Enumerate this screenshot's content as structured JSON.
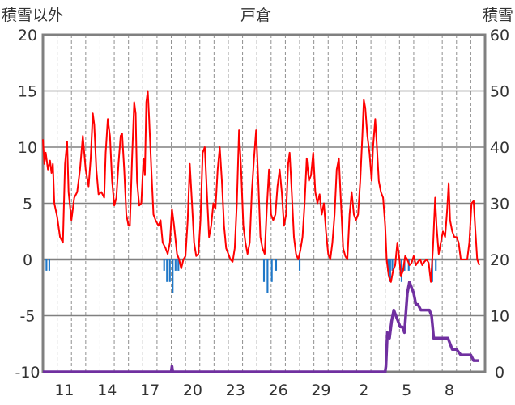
{
  "chart_data": {
    "type": "line",
    "title": "戸倉",
    "left_axis_label": "積雪以外",
    "right_axis_label": "積雪",
    "left_ylim": [
      -10,
      20
    ],
    "left_yticks": [
      20,
      15,
      10,
      5,
      0,
      -5,
      -10
    ],
    "right_ylim": [
      0,
      60
    ],
    "right_yticks": [
      60,
      50,
      40,
      30,
      20,
      10,
      0
    ],
    "x_range_days": [
      0,
      31
    ],
    "x_ticks": [
      {
        "pos": 1.5,
        "label": "11"
      },
      {
        "pos": 4.5,
        "label": "14"
      },
      {
        "pos": 7.5,
        "label": "17"
      },
      {
        "pos": 10.5,
        "label": "20"
      },
      {
        "pos": 13.5,
        "label": "23"
      },
      {
        "pos": 16.5,
        "label": "26"
      },
      {
        "pos": 19.5,
        "label": "29"
      },
      {
        "pos": 22.5,
        "label": "2"
      },
      {
        "pos": 25.5,
        "label": "5"
      },
      {
        "pos": 28.5,
        "label": "8"
      }
    ],
    "grid": "vertical dashed daily; horizontal solid at each 5",
    "colors": {
      "temperature": "#ff0000",
      "precipitation": "#1f78c8",
      "snow_depth": "#7030a0",
      "frame": "#808080",
      "zero_line": "#808080"
    },
    "series": [
      {
        "key": "temperature",
        "axis": "left",
        "values": [
          [
            0.0,
            10.7
          ],
          [
            0.1,
            8.5
          ],
          [
            0.2,
            9.5
          ],
          [
            0.35,
            8.0
          ],
          [
            0.5,
            8.8
          ],
          [
            0.6,
            7.7
          ],
          [
            0.7,
            8.5
          ],
          [
            0.8,
            5.0
          ],
          [
            1.0,
            3.8
          ],
          [
            1.2,
            2.0
          ],
          [
            1.4,
            1.5
          ],
          [
            1.55,
            8.5
          ],
          [
            1.7,
            10.5
          ],
          [
            1.8,
            6.0
          ],
          [
            2.0,
            3.5
          ],
          [
            2.2,
            5.5
          ],
          [
            2.4,
            6.0
          ],
          [
            2.6,
            8.0
          ],
          [
            2.8,
            11.0
          ],
          [
            3.0,
            8.0
          ],
          [
            3.2,
            6.5
          ],
          [
            3.35,
            9.0
          ],
          [
            3.5,
            13.0
          ],
          [
            3.6,
            12.0
          ],
          [
            3.75,
            8.0
          ],
          [
            3.9,
            5.8
          ],
          [
            4.1,
            6.0
          ],
          [
            4.3,
            5.5
          ],
          [
            4.4,
            9.5
          ],
          [
            4.55,
            12.5
          ],
          [
            4.7,
            11.0
          ],
          [
            4.85,
            7.0
          ],
          [
            5.0,
            4.8
          ],
          [
            5.15,
            5.5
          ],
          [
            5.3,
            8.5
          ],
          [
            5.45,
            11.0
          ],
          [
            5.55,
            11.2
          ],
          [
            5.7,
            8.0
          ],
          [
            5.85,
            4.0
          ],
          [
            6.0,
            3.0
          ],
          [
            6.1,
            3.0
          ],
          [
            6.25,
            9.0
          ],
          [
            6.4,
            14.0
          ],
          [
            6.5,
            13.0
          ],
          [
            6.6,
            7.0
          ],
          [
            6.75,
            4.8
          ],
          [
            6.9,
            5.0
          ],
          [
            7.05,
            9.0
          ],
          [
            7.15,
            7.5
          ],
          [
            7.25,
            14.0
          ],
          [
            7.35,
            15.0
          ],
          [
            7.45,
            12.5
          ],
          [
            7.6,
            8.0
          ],
          [
            7.75,
            4.0
          ],
          [
            7.9,
            3.5
          ],
          [
            8.1,
            3.0
          ],
          [
            8.25,
            3.5
          ],
          [
            8.4,
            1.5
          ],
          [
            8.6,
            1.0
          ],
          [
            8.75,
            0.5
          ],
          [
            8.9,
            1.5
          ],
          [
            9.05,
            4.5
          ],
          [
            9.2,
            3.0
          ],
          [
            9.4,
            0.5
          ],
          [
            9.55,
            0.0
          ],
          [
            9.7,
            -0.8
          ],
          [
            9.85,
            0.0
          ],
          [
            10.0,
            0.3
          ],
          [
            10.15,
            3.5
          ],
          [
            10.3,
            8.5
          ],
          [
            10.45,
            5.0
          ],
          [
            10.6,
            1.5
          ],
          [
            10.75,
            0.3
          ],
          [
            10.9,
            0.5
          ],
          [
            11.05,
            3.5
          ],
          [
            11.2,
            9.5
          ],
          [
            11.35,
            10.0
          ],
          [
            11.5,
            6.0
          ],
          [
            11.65,
            2.0
          ],
          [
            11.8,
            3.0
          ],
          [
            11.95,
            5.0
          ],
          [
            12.1,
            4.5
          ],
          [
            12.25,
            8.0
          ],
          [
            12.4,
            10.0
          ],
          [
            12.55,
            7.0
          ],
          [
            12.7,
            3.0
          ],
          [
            12.85,
            1.0
          ],
          [
            13.0,
            0.5
          ],
          [
            13.15,
            0.0
          ],
          [
            13.3,
            -0.2
          ],
          [
            13.45,
            1.0
          ],
          [
            13.6,
            5.0
          ],
          [
            13.75,
            11.5
          ],
          [
            13.9,
            8.0
          ],
          [
            14.05,
            3.0
          ],
          [
            14.2,
            1.5
          ],
          [
            14.35,
            0.5
          ],
          [
            14.5,
            1.5
          ],
          [
            14.65,
            6.0
          ],
          [
            14.8,
            9.0
          ],
          [
            14.95,
            11.5
          ],
          [
            15.1,
            7.0
          ],
          [
            15.25,
            2.0
          ],
          [
            15.4,
            1.0
          ],
          [
            15.55,
            0.5
          ],
          [
            15.7,
            4.5
          ],
          [
            15.85,
            8.0
          ],
          [
            16.0,
            4.0
          ],
          [
            16.15,
            3.5
          ],
          [
            16.3,
            4.0
          ],
          [
            16.45,
            6.5
          ],
          [
            16.6,
            8.0
          ],
          [
            16.75,
            6.0
          ],
          [
            16.9,
            3.0
          ],
          [
            17.05,
            4.0
          ],
          [
            17.2,
            8.5
          ],
          [
            17.3,
            9.5
          ],
          [
            17.45,
            6.0
          ],
          [
            17.6,
            2.0
          ],
          [
            17.75,
            0.5
          ],
          [
            17.9,
            0.0
          ],
          [
            18.05,
            0.8
          ],
          [
            18.2,
            2.0
          ],
          [
            18.35,
            5.0
          ],
          [
            18.5,
            9.0
          ],
          [
            18.65,
            7.0
          ],
          [
            18.8,
            7.5
          ],
          [
            18.95,
            9.5
          ],
          [
            19.1,
            6.0
          ],
          [
            19.25,
            5.0
          ],
          [
            19.4,
            5.8
          ],
          [
            19.55,
            4.0
          ],
          [
            19.7,
            5.0
          ],
          [
            19.85,
            2.5
          ],
          [
            20.0,
            0.5
          ],
          [
            20.15,
            0.0
          ],
          [
            20.3,
            1.5
          ],
          [
            20.45,
            4.0
          ],
          [
            20.6,
            8.0
          ],
          [
            20.75,
            9.0
          ],
          [
            20.9,
            5.0
          ],
          [
            21.05,
            1.0
          ],
          [
            21.2,
            0.3
          ],
          [
            21.35,
            0.0
          ],
          [
            21.5,
            4.0
          ],
          [
            21.65,
            6.0
          ],
          [
            21.8,
            4.0
          ],
          [
            21.95,
            3.5
          ],
          [
            22.1,
            4.0
          ],
          [
            22.25,
            7.0
          ],
          [
            22.4,
            11.0
          ],
          [
            22.5,
            14.2
          ],
          [
            22.6,
            13.5
          ],
          [
            22.75,
            11.0
          ],
          [
            22.9,
            9.5
          ],
          [
            23.05,
            7.0
          ],
          [
            23.15,
            10.0
          ],
          [
            23.3,
            12.5
          ],
          [
            23.4,
            10.5
          ],
          [
            23.55,
            7.0
          ],
          [
            23.7,
            6.0
          ],
          [
            23.85,
            5.5
          ],
          [
            24.0,
            3.0
          ],
          [
            24.1,
            0.0
          ],
          [
            24.25,
            -1.5
          ],
          [
            24.4,
            -2.0
          ],
          [
            24.55,
            -1.0
          ],
          [
            24.7,
            -0.5
          ],
          [
            24.85,
            1.5
          ],
          [
            25.0,
            0.0
          ],
          [
            25.1,
            -1.5
          ],
          [
            25.25,
            -1.0
          ],
          [
            25.4,
            0.3
          ],
          [
            25.55,
            0.0
          ],
          [
            25.7,
            -0.5
          ],
          [
            25.85,
            -0.3
          ],
          [
            26.0,
            0.3
          ],
          [
            26.15,
            -0.5
          ],
          [
            26.3,
            -0.2
          ],
          [
            26.45,
            0.0
          ],
          [
            26.6,
            -0.5
          ],
          [
            26.75,
            -0.2
          ],
          [
            26.9,
            0.0
          ],
          [
            27.05,
            -0.3
          ],
          [
            27.2,
            -2.0
          ],
          [
            27.35,
            1.0
          ],
          [
            27.5,
            5.5
          ],
          [
            27.6,
            3.0
          ],
          [
            27.75,
            0.5
          ],
          [
            27.9,
            1.5
          ],
          [
            28.05,
            2.5
          ],
          [
            28.2,
            2.0
          ],
          [
            28.35,
            4.5
          ],
          [
            28.45,
            6.8
          ],
          [
            28.55,
            3.5
          ],
          [
            28.7,
            2.5
          ],
          [
            28.85,
            2.0
          ],
          [
            29.0,
            2.0
          ],
          [
            29.15,
            1.5
          ],
          [
            29.3,
            0.0
          ],
          [
            29.45,
            0.0
          ],
          [
            29.6,
            0.0
          ],
          [
            29.75,
            0.0
          ],
          [
            29.9,
            1.5
          ],
          [
            30.05,
            5.0
          ],
          [
            30.2,
            5.2
          ],
          [
            30.3,
            3.0
          ],
          [
            30.45,
            0.0
          ],
          [
            30.6,
            -0.5
          ]
        ]
      },
      {
        "key": "precipitation",
        "axis": "left",
        "kind": "bar",
        "values": [
          [
            0.25,
            -1.0
          ],
          [
            0.45,
            -1.0
          ],
          [
            8.5,
            -1.0
          ],
          [
            8.7,
            -2.0
          ],
          [
            8.9,
            -2.0
          ],
          [
            9.1,
            -3.0
          ],
          [
            9.3,
            -1.0
          ],
          [
            9.5,
            -1.0
          ],
          [
            15.5,
            -2.0
          ],
          [
            15.75,
            -3.0
          ],
          [
            16.05,
            -2.0
          ],
          [
            16.35,
            -1.0
          ],
          [
            18.0,
            -1.0
          ],
          [
            24.2,
            -1.0
          ],
          [
            24.35,
            -2.0
          ],
          [
            24.5,
            -1.0
          ],
          [
            25.15,
            -2.0
          ],
          [
            25.35,
            -1.0
          ],
          [
            25.65,
            -1.0
          ],
          [
            27.3,
            -2.0
          ],
          [
            27.55,
            -1.0
          ]
        ]
      },
      {
        "key": "snow_depth",
        "axis": "right",
        "values": [
          [
            0.0,
            0
          ],
          [
            9.0,
            0
          ],
          [
            9.05,
            1
          ],
          [
            9.1,
            0
          ],
          [
            24.0,
            0
          ],
          [
            24.05,
            1
          ],
          [
            24.15,
            7
          ],
          [
            24.3,
            6
          ],
          [
            24.45,
            9
          ],
          [
            24.6,
            11
          ],
          [
            24.75,
            10
          ],
          [
            24.9,
            9
          ],
          [
            25.05,
            8
          ],
          [
            25.2,
            8
          ],
          [
            25.35,
            7
          ],
          [
            25.55,
            14
          ],
          [
            25.7,
            16
          ],
          [
            25.85,
            15
          ],
          [
            26.0,
            14
          ],
          [
            26.15,
            12
          ],
          [
            26.3,
            12
          ],
          [
            26.5,
            11
          ],
          [
            26.7,
            11
          ],
          [
            26.9,
            11
          ],
          [
            27.1,
            11
          ],
          [
            27.25,
            10
          ],
          [
            27.4,
            6
          ],
          [
            27.6,
            6
          ],
          [
            28.0,
            6
          ],
          [
            28.4,
            6
          ],
          [
            28.7,
            4
          ],
          [
            29.0,
            4
          ],
          [
            29.3,
            3
          ],
          [
            29.6,
            3
          ],
          [
            30.0,
            3
          ],
          [
            30.2,
            2
          ],
          [
            30.6,
            2
          ]
        ]
      }
    ]
  }
}
